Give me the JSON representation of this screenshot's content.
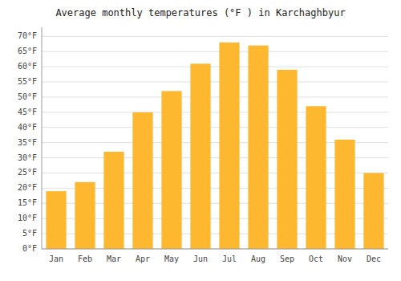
{
  "chart_data": {
    "type": "bar",
    "title": "Average monthly temperatures (°F ) in Karchaghbyur",
    "categories": [
      "Jan",
      "Feb",
      "Mar",
      "Apr",
      "May",
      "Jun",
      "Jul",
      "Aug",
      "Sep",
      "Oct",
      "Nov",
      "Dec"
    ],
    "values": [
      19,
      22,
      32,
      45,
      52,
      61,
      68,
      67,
      59,
      47,
      36,
      25
    ],
    "color": "#FDB830",
    "ylim": [
      0,
      73
    ],
    "yticks": [
      {
        "value": 0,
        "label": "0°F"
      },
      {
        "value": 5,
        "label": "5°F"
      },
      {
        "value": 10,
        "label": "10°F"
      },
      {
        "value": 15,
        "label": "15°F"
      },
      {
        "value": 20,
        "label": "20°F"
      },
      {
        "value": 25,
        "label": "25°F"
      },
      {
        "value": 30,
        "label": "30°F"
      },
      {
        "value": 35,
        "label": "35°F"
      },
      {
        "value": 40,
        "label": "40°F"
      },
      {
        "value": 45,
        "label": "45°F"
      },
      {
        "value": 50,
        "label": "50°F"
      },
      {
        "value": 55,
        "label": "55°F"
      },
      {
        "value": 60,
        "label": "60°F"
      },
      {
        "value": 65,
        "label": "65°F"
      },
      {
        "value": 70,
        "label": "70°F"
      }
    ],
    "grid": true
  }
}
